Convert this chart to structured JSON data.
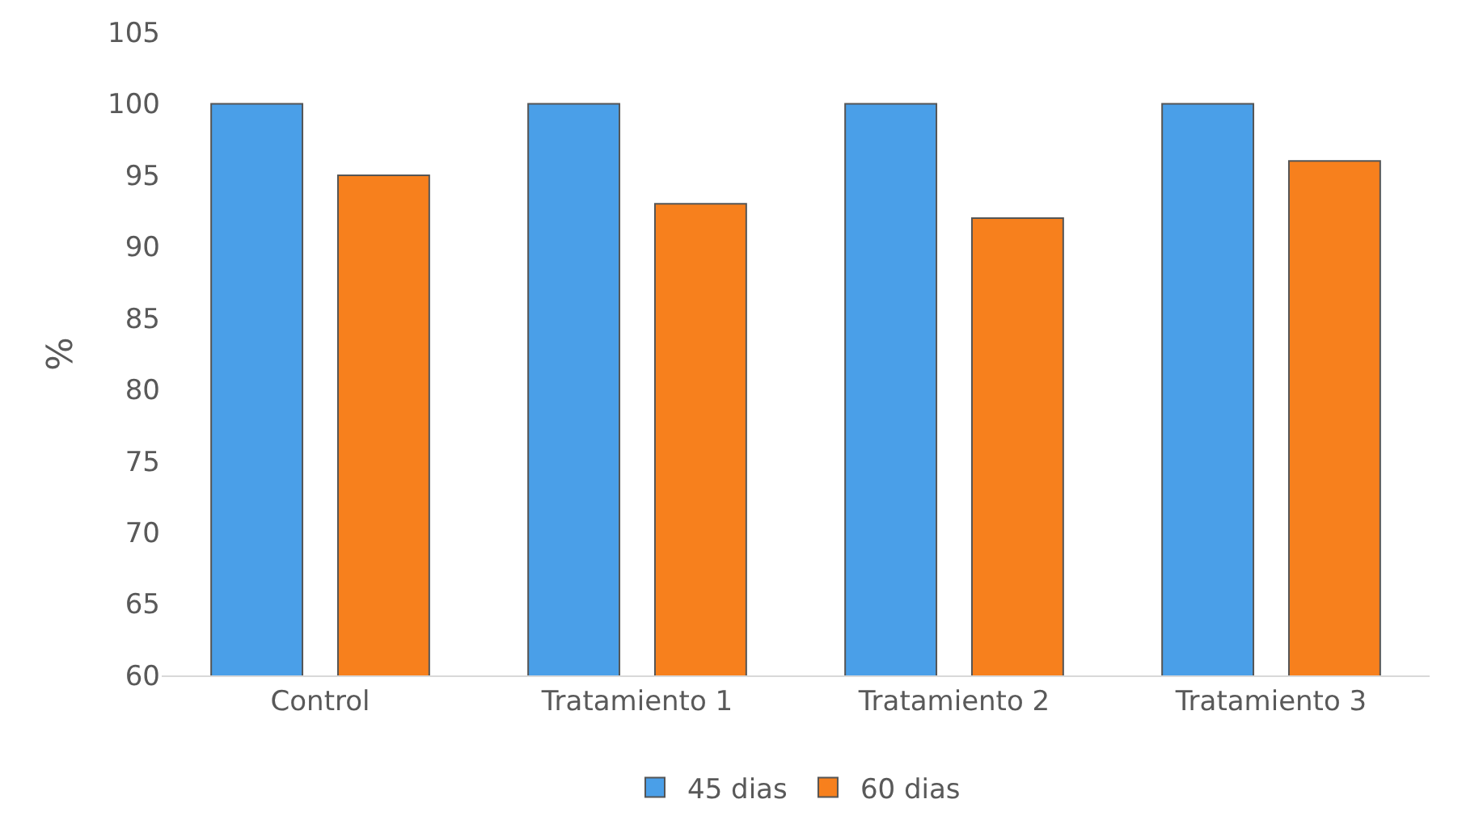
{
  "chart_data": {
    "type": "bar",
    "ylabel": "%",
    "categories": [
      "Control",
      "Tratamiento 1",
      "Tratamiento 2",
      "Tratamiento 3"
    ],
    "series": [
      {
        "name": "45 dias",
        "color": "#4a9fe8",
        "values": [
          100,
          100,
          100,
          100
        ]
      },
      {
        "name": "60 dias",
        "color": "#f7801d",
        "values": [
          95,
          93,
          92,
          96
        ]
      }
    ],
    "ylim": [
      60,
      105
    ],
    "yticks": [
      60,
      65,
      70,
      75,
      80,
      85,
      90,
      95,
      100,
      105
    ],
    "grid": false,
    "legend": "bottom"
  }
}
